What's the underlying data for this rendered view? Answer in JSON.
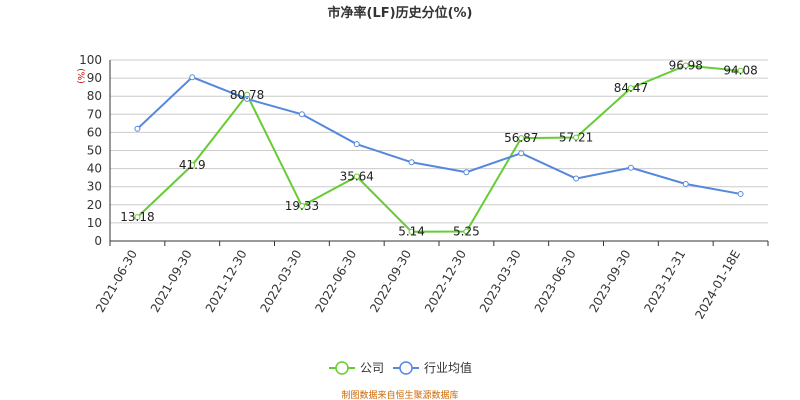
{
  "chart_data": {
    "type": "line",
    "title": "市净率(LF)历史分位(%)",
    "unit_label": "(%)",
    "categories": [
      "2021-06-30",
      "2021-09-30",
      "2021-12-30",
      "2022-03-30",
      "2022-06-30",
      "2022-09-30",
      "2022-12-30",
      "2023-03-30",
      "2023-06-30",
      "2023-09-30",
      "2023-12-31",
      "2024-01-18E"
    ],
    "ylim": [
      0,
      100
    ],
    "yticks": [
      0,
      10,
      20,
      30,
      40,
      50,
      60,
      70,
      80,
      90,
      100
    ],
    "grid": true,
    "legend_position": "bottom",
    "series": [
      {
        "name": "公司",
        "color": "#66cc33",
        "values": [
          13.18,
          41.9,
          80.78,
          19.33,
          35.64,
          5.14,
          5.25,
          56.87,
          57.21,
          84.47,
          96.98,
          94.08
        ],
        "labels": [
          "13.18",
          "41.9",
          "80.78",
          "19.33",
          "35.64",
          "5.14",
          "5.25",
          "56.87",
          "57.21",
          "84.47",
          "96.98",
          "94.08"
        ]
      },
      {
        "name": "行业均值",
        "color": "#5588dd",
        "values": [
          62,
          90.5,
          78.5,
          70,
          53.5,
          43.5,
          38,
          48.5,
          34.5,
          40.5,
          31.5,
          26
        ]
      }
    ]
  },
  "source_note": "制图数据来自恒生聚源数据库",
  "colors": {
    "unit": "#cc0000",
    "source": "#cc6600",
    "axis": "#333333",
    "grid": "#cccccc"
  }
}
